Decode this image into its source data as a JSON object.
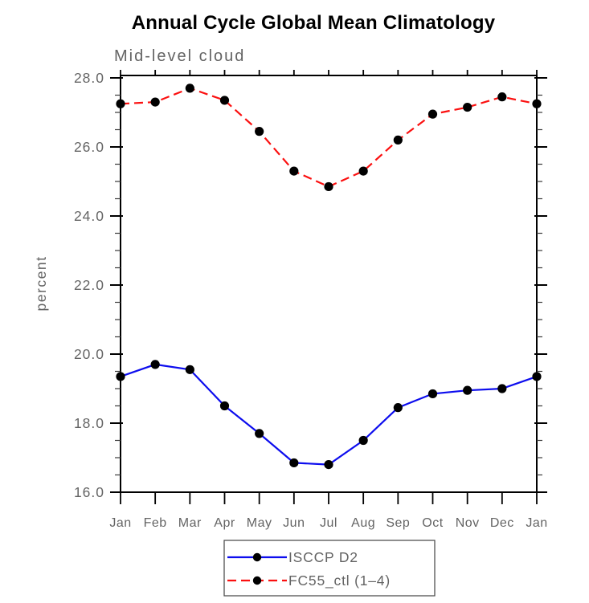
{
  "page": {
    "background_color": "#ffffff"
  },
  "chart_data": {
    "type": "line",
    "title": "Annual Cycle Global Mean Climatology",
    "subtitle": "Mid-level cloud",
    "xlabel": "",
    "ylabel": "percent",
    "categories": [
      "Jan",
      "Feb",
      "Mar",
      "Apr",
      "May",
      "Jun",
      "Jul",
      "Aug",
      "Sep",
      "Oct",
      "Nov",
      "Dec",
      "Jan"
    ],
    "ylim": [
      16.0,
      28.0
    ],
    "ytick_step": 2.0,
    "yminor_step": 0.5,
    "ytick_labels": [
      "16.0",
      "18.0",
      "20.0",
      "22.0",
      "24.0",
      "26.0",
      "28.0"
    ],
    "grid": false,
    "legend_position": "bottom-center",
    "axis_color": "#000000",
    "label_color": "#646464",
    "series": [
      {
        "name": "ISCCP D2",
        "color": "#0d0dee",
        "line_style": "solid",
        "marker": "filled-circle",
        "marker_color": "#000000",
        "values": [
          19.35,
          19.7,
          19.55,
          18.5,
          17.7,
          16.85,
          16.8,
          17.5,
          18.45,
          18.85,
          18.95,
          19.0,
          19.35
        ]
      },
      {
        "name": "FC55_ctl (1–4)",
        "color": "#fb1010",
        "line_style": "dashed",
        "marker": "filled-circle",
        "marker_color": "#000000",
        "values": [
          27.25,
          27.3,
          27.7,
          27.35,
          26.45,
          25.3,
          24.85,
          25.3,
          26.2,
          26.95,
          27.15,
          27.45,
          27.25
        ]
      }
    ]
  }
}
